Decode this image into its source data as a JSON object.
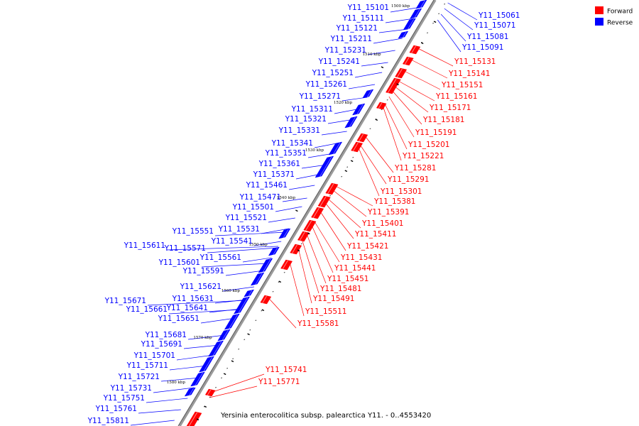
{
  "legend": {
    "forward_label": "Forward",
    "reverse_label": "Reverse",
    "forward_color": "#ff0000",
    "reverse_color": "#0000ff"
  },
  "caption": "Yersinia enterocolitica subsp. palearctica Y11. - 0..4553420",
  "colors": {
    "backbone": "#808080",
    "forward": "#ff0000",
    "reverse": "#0000ff"
  },
  "ticks": [
    "1500 kbp",
    "1510 kbp",
    "1520 kbp",
    "1530 kbp",
    "1540 kbp",
    "1550 kbp",
    "1560 kbp",
    "1570 kbp",
    "1580 kbp"
  ],
  "reverse_labels": [
    "Y11_15101",
    "Y11_15111",
    "Y11_15121",
    "Y11_15211",
    "Y11_15231",
    "Y11_15241",
    "Y11_15251",
    "Y11_15261",
    "Y11_15271",
    "Y11_15311",
    "Y11_15321",
    "Y11_15331",
    "Y11_15341",
    "Y11_15351",
    "Y11_15361",
    "Y11_15371",
    "Y11_15461",
    "Y11_15471",
    "Y11_15501",
    "Y11_15521",
    "Y11_15551",
    "Y11_15531",
    "Y11_15541",
    "Y11_15611",
    "Y11_15571",
    "Y11_15561",
    "Y11_15601",
    "Y11_15591",
    "Y11_15621",
    "Y11_15631",
    "Y11_15671",
    "Y11_15661",
    "Y11_15641",
    "Y11_15651",
    "Y11_15681",
    "Y11_15691",
    "Y11_15701",
    "Y11_15711",
    "Y11_15721",
    "Y11_15731",
    "Y11_15751",
    "Y11_15761",
    "Y11_15811"
  ],
  "reverse_right_labels": [
    "Y11_15061",
    "Y11_15071",
    "Y11_15081",
    "Y11_15091"
  ],
  "forward_labels": [
    "Y11_15131",
    "Y11_15141",
    "Y11_15151",
    "Y11_15161",
    "Y11_15171",
    "Y11_15181",
    "Y11_15191",
    "Y11_15201",
    "Y11_15221",
    "Y11_15281",
    "Y11_15291",
    "Y11_15301",
    "Y11_15381",
    "Y11_15391",
    "Y11_15401",
    "Y11_15411",
    "Y11_15421",
    "Y11_15431",
    "Y11_15441",
    "Y11_15451",
    "Y11_15481",
    "Y11_15491",
    "Y11_15511",
    "Y11_15581",
    "Y11_15741",
    "Y11_15771"
  ]
}
